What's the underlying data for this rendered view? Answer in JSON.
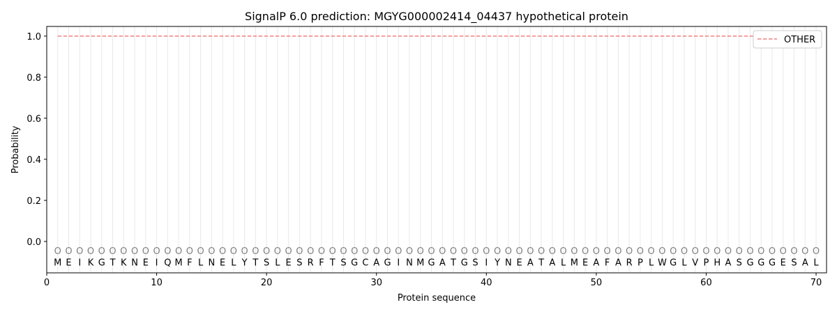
{
  "chart_data": {
    "type": "line",
    "title": "SignalP 6.0 prediction: MGYG000002414_04437 hypothetical protein",
    "xlabel": "Protein sequence",
    "ylabel": "Probability",
    "xlim": [
      0,
      70.95
    ],
    "ylim": [
      -0.153,
      1.047
    ],
    "xticks": [
      0,
      10,
      20,
      30,
      40,
      50,
      60,
      70
    ],
    "yticks": [
      0.0,
      0.2,
      0.4,
      0.6,
      0.8,
      1.0
    ],
    "grid": "vertical lines at each residue",
    "legend_placement": "top-right",
    "sequence": [
      "M",
      "E",
      "I",
      "K",
      "G",
      "T",
      "K",
      "N",
      "E",
      "I",
      "Q",
      "M",
      "F",
      "L",
      "N",
      "E",
      "L",
      "Y",
      "T",
      "S",
      "L",
      "E",
      "S",
      "R",
      "F",
      "T",
      "S",
      "G",
      "C",
      "A",
      "G",
      "I",
      "N",
      "M",
      "G",
      "A",
      "T",
      "G",
      "S",
      "I",
      "Y",
      "N",
      "E",
      "A",
      "T",
      "A",
      "L",
      "M",
      "E",
      "A",
      "F",
      "A",
      "R",
      "P",
      "L",
      "W",
      "G",
      "L",
      "V",
      "P",
      "H",
      "A",
      "S",
      "G",
      "G",
      "G",
      "E",
      "S",
      "A",
      "L"
    ],
    "residue_label": "O",
    "series": [
      {
        "name": "OTHER",
        "color": "#f08080",
        "style": "dashed",
        "x": [
          1,
          70
        ],
        "y": [
          1.0,
          1.0
        ]
      }
    ]
  }
}
